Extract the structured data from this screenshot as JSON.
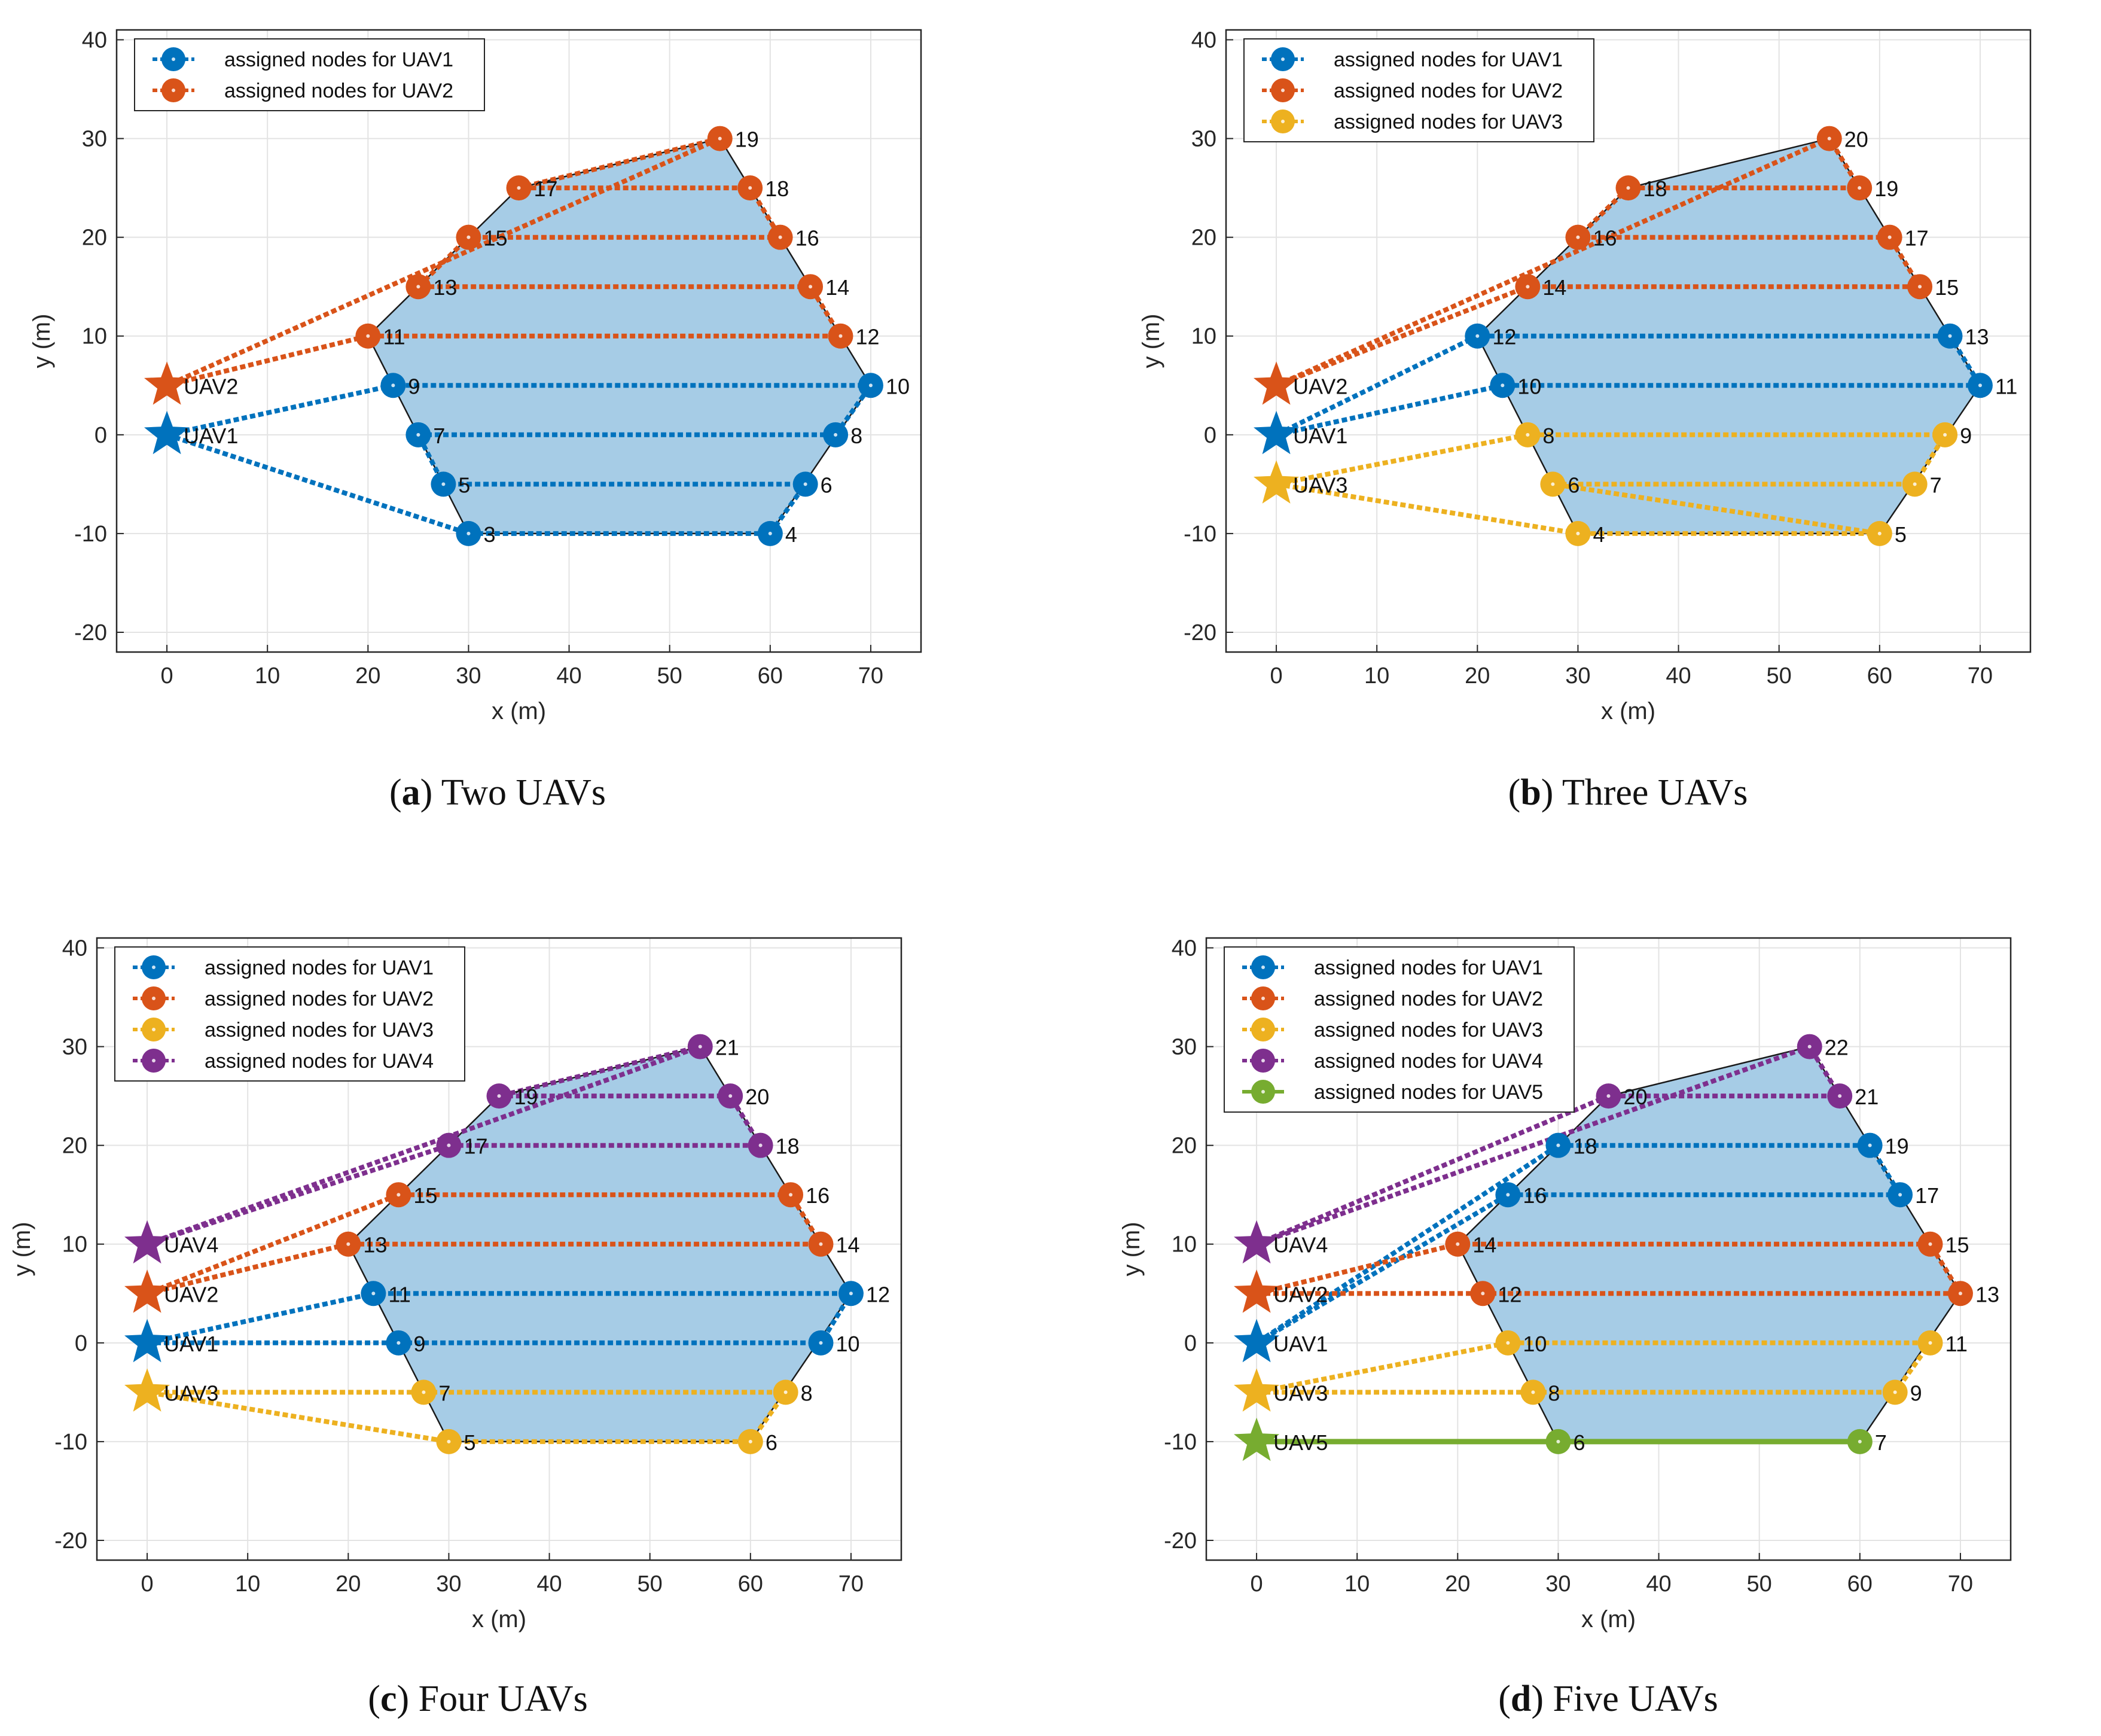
{
  "colors": {
    "UAV1": "#0072BD",
    "UAV2": "#D95319",
    "UAV3": "#EDB120",
    "UAV4": "#7E2F8E",
    "UAV5": "#77AC30",
    "region_fill": "#A6CCE6",
    "region_edge": "#1a1a1a",
    "grid": "#e3e3e3",
    "axis": "#262626"
  },
  "chart_data": [
    {
      "type": "scatter",
      "caption_letter": "a",
      "caption_text": "Two UAVs",
      "xlabel": "x (m)",
      "ylabel": "y (m)",
      "xlim": [
        -5,
        75
      ],
      "ylim": [
        -22,
        41
      ],
      "xticks": [
        0,
        10,
        20,
        30,
        40,
        50,
        60,
        70
      ],
      "yticks": [
        -20,
        -10,
        0,
        10,
        20,
        30,
        40
      ],
      "grid": true,
      "legend_position": "top-left",
      "region": [
        [
          30,
          -10
        ],
        [
          60,
          -10
        ],
        [
          70,
          5
        ],
        [
          55,
          30
        ],
        [
          35,
          25
        ],
        [
          20,
          10
        ],
        [
          22.5,
          5
        ]
      ],
      "uavs": [
        {
          "name": "UAV1",
          "legend": "assigned nodes for UAV1",
          "start": [
            0,
            0
          ],
          "solid": false,
          "nodes": [
            [
              3,
              30,
              -10
            ],
            [
              4,
              60,
              -10
            ],
            [
              6,
              63.5,
              -5
            ],
            [
              5,
              27.5,
              -5
            ],
            [
              7,
              25,
              0
            ],
            [
              8,
              66.5,
              0
            ],
            [
              10,
              70,
              5
            ],
            [
              9,
              22.5,
              5
            ]
          ]
        },
        {
          "name": "UAV2",
          "legend": "assigned nodes for UAV2",
          "start": [
            0,
            5
          ],
          "solid": false,
          "nodes": [
            [
              11,
              20,
              10
            ],
            [
              12,
              67,
              10
            ],
            [
              14,
              64,
              15
            ],
            [
              13,
              25,
              15
            ],
            [
              15,
              30,
              20
            ],
            [
              16,
              61,
              20
            ],
            [
              18,
              58,
              25
            ],
            [
              17,
              35,
              25
            ],
            [
              19,
              55,
              30
            ]
          ]
        }
      ]
    },
    {
      "type": "scatter",
      "caption_letter": "b",
      "caption_text": "Three UAVs",
      "xlabel": "x (m)",
      "ylabel": "y (m)",
      "xlim": [
        -5,
        75
      ],
      "ylim": [
        -22,
        41
      ],
      "xticks": [
        0,
        10,
        20,
        30,
        40,
        50,
        60,
        70
      ],
      "yticks": [
        -20,
        -10,
        0,
        10,
        20,
        30,
        40
      ],
      "grid": true,
      "legend_position": "top-left",
      "region": [
        [
          30,
          -10
        ],
        [
          60,
          -10
        ],
        [
          70,
          5
        ],
        [
          55,
          30
        ],
        [
          35,
          25
        ],
        [
          20,
          10
        ],
        [
          22.5,
          5
        ]
      ],
      "uavs": [
        {
          "name": "UAV1",
          "legend": "assigned nodes for UAV1",
          "start": [
            0,
            0
          ],
          "solid": false,
          "nodes": [
            [
              10,
              22.5,
              5
            ],
            [
              11,
              70,
              5
            ],
            [
              13,
              67,
              10
            ],
            [
              12,
              20,
              10
            ]
          ]
        },
        {
          "name": "UAV2",
          "legend": "assigned nodes for UAV2",
          "start": [
            0,
            5
          ],
          "solid": false,
          "nodes": [
            [
              14,
              25,
              15
            ],
            [
              15,
              64,
              15
            ],
            [
              17,
              61,
              20
            ],
            [
              16,
              30,
              20
            ],
            [
              18,
              35,
              25
            ],
            [
              19,
              58,
              25
            ],
            [
              20,
              55,
              30
            ]
          ]
        },
        {
          "name": "UAV3",
          "legend": "assigned nodes for UAV3",
          "start": [
            0,
            -5
          ],
          "solid": false,
          "nodes": [
            [
              4,
              30,
              -10
            ],
            [
              5,
              60,
              -10
            ],
            [
              6,
              27.5,
              -5
            ],
            [
              7,
              63.5,
              -5
            ],
            [
              9,
              66.5,
              0
            ],
            [
              8,
              25,
              0
            ]
          ]
        }
      ]
    },
    {
      "type": "scatter",
      "caption_letter": "c",
      "caption_text": "Four UAVs",
      "xlabel": "x (m)",
      "ylabel": "y (m)",
      "xlim": [
        -5,
        75
      ],
      "ylim": [
        -22,
        41
      ],
      "xticks": [
        0,
        10,
        20,
        30,
        40,
        50,
        60,
        70
      ],
      "yticks": [
        -20,
        -10,
        0,
        10,
        20,
        30,
        40
      ],
      "grid": true,
      "legend_position": "top-left",
      "region": [
        [
          30,
          -10
        ],
        [
          60,
          -10
        ],
        [
          70,
          5
        ],
        [
          55,
          30
        ],
        [
          35,
          25
        ],
        [
          20,
          10
        ],
        [
          22.5,
          5
        ]
      ],
      "uavs": [
        {
          "name": "UAV1",
          "legend": "assigned nodes for UAV1",
          "start": [
            0,
            0
          ],
          "solid": false,
          "nodes": [
            [
              9,
              25,
              0
            ],
            [
              10,
              67,
              0
            ],
            [
              12,
              70,
              5
            ],
            [
              11,
              22.5,
              5
            ]
          ]
        },
        {
          "name": "UAV2",
          "legend": "assigned nodes for UAV2",
          "start": [
            0,
            5
          ],
          "solid": false,
          "nodes": [
            [
              13,
              20,
              10
            ],
            [
              14,
              67,
              10
            ],
            [
              16,
              64,
              15
            ],
            [
              15,
              25,
              15
            ]
          ]
        },
        {
          "name": "UAV3",
          "legend": "assigned nodes for UAV3",
          "start": [
            0,
            -5
          ],
          "solid": false,
          "nodes": [
            [
              7,
              27.5,
              -5
            ],
            [
              8,
              63.5,
              -5
            ],
            [
              6,
              60,
              -10
            ],
            [
              5,
              30,
              -10
            ]
          ]
        },
        {
          "name": "UAV4",
          "legend": "assigned nodes for UAV4",
          "start": [
            0,
            10
          ],
          "solid": false,
          "nodes": [
            [
              17,
              30,
              20
            ],
            [
              18,
              61,
              20
            ],
            [
              20,
              58,
              25
            ],
            [
              19,
              35,
              25
            ],
            [
              21,
              55,
              30
            ]
          ]
        }
      ]
    },
    {
      "type": "scatter",
      "caption_letter": "d",
      "caption_text": "Five UAVs",
      "xlabel": "x (m)",
      "ylabel": "y (m)",
      "xlim": [
        -5,
        75
      ],
      "ylim": [
        -22,
        41
      ],
      "xticks": [
        0,
        10,
        20,
        30,
        40,
        50,
        60,
        70
      ],
      "yticks": [
        -20,
        -10,
        0,
        10,
        20,
        30,
        40
      ],
      "grid": true,
      "legend_position": "top-left",
      "region": [
        [
          30,
          -10
        ],
        [
          60,
          -10
        ],
        [
          70,
          5
        ],
        [
          55,
          30
        ],
        [
          35,
          25
        ],
        [
          20,
          10
        ],
        [
          22.5,
          5
        ]
      ],
      "uavs": [
        {
          "name": "UAV1",
          "legend": "assigned nodes for UAV1",
          "start": [
            0,
            0
          ],
          "solid": false,
          "nodes": [
            [
              16,
              25,
              15
            ],
            [
              17,
              64,
              15
            ],
            [
              19,
              61,
              20
            ],
            [
              18,
              30,
              20
            ]
          ]
        },
        {
          "name": "UAV2",
          "legend": "assigned nodes for UAV2",
          "start": [
            0,
            5
          ],
          "solid": false,
          "nodes": [
            [
              12,
              22.5,
              5
            ],
            [
              13,
              70,
              5
            ],
            [
              15,
              67,
              10
            ],
            [
              14,
              20,
              10
            ]
          ]
        },
        {
          "name": "UAV3",
          "legend": "assigned nodes for UAV3",
          "start": [
            0,
            -5
          ],
          "solid": false,
          "nodes": [
            [
              8,
              27.5,
              -5
            ],
            [
              9,
              63.5,
              -5
            ],
            [
              11,
              67,
              0
            ],
            [
              10,
              25,
              0
            ]
          ]
        },
        {
          "name": "UAV4",
          "legend": "assigned nodes for UAV4",
          "start": [
            0,
            10
          ],
          "solid": false,
          "nodes": [
            [
              20,
              35,
              25
            ],
            [
              21,
              58,
              25
            ],
            [
              22,
              55,
              30
            ]
          ]
        },
        {
          "name": "UAV5",
          "legend": "assigned nodes for UAV5",
          "start": [
            0,
            -10
          ],
          "solid": true,
          "nodes": [
            [
              6,
              30,
              -10
            ],
            [
              7,
              60,
              -10
            ]
          ]
        }
      ]
    }
  ]
}
